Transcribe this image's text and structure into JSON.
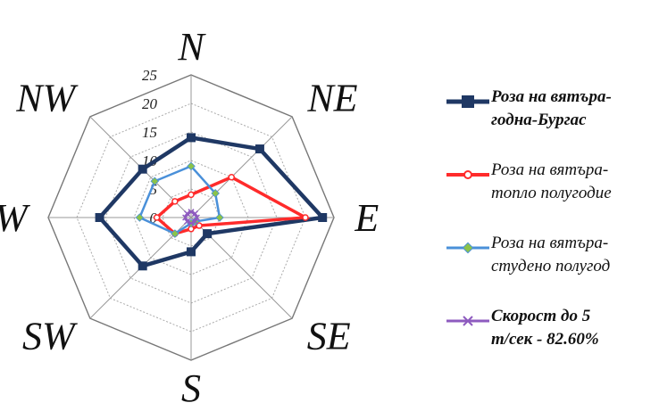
{
  "chart_data": {
    "type": "radar",
    "directions": [
      "N",
      "NE",
      "E",
      "SE",
      "S",
      "SW",
      "W",
      "NW"
    ],
    "rlim": [
      0,
      25
    ],
    "ticks": [
      "0",
      "5",
      "10",
      "15",
      "20",
      "25"
    ],
    "grid": true,
    "legend_position": "right",
    "series": [
      {
        "name_lines": [
          "Роза на вятъра-",
          "годна-Бургас"
        ],
        "color": "#1f3864",
        "marker": "square",
        "values": [
          14,
          17,
          23,
          4,
          6,
          12,
          16,
          12
        ]
      },
      {
        "name_lines": [
          "Роза на вятъра-",
          "топло полугодие"
        ],
        "color": "#ff2b2b",
        "marker": "circle",
        "values": [
          4,
          10,
          20,
          2,
          2,
          4,
          6,
          4
        ]
      },
      {
        "name_lines": [
          "Роза на вятъра-",
          "студено полугод"
        ],
        "color": "#4a90d9",
        "marker": "diamond",
        "values": [
          9,
          6,
          5,
          1,
          1,
          4,
          9,
          9
        ]
      },
      {
        "name_lines": [
          "Скорост до 5",
          "m/сек - 82.60%"
        ],
        "color": "#8e5bbf",
        "marker": "x",
        "values": [
          1,
          1,
          1,
          1,
          1,
          1,
          1,
          1
        ]
      }
    ]
  }
}
